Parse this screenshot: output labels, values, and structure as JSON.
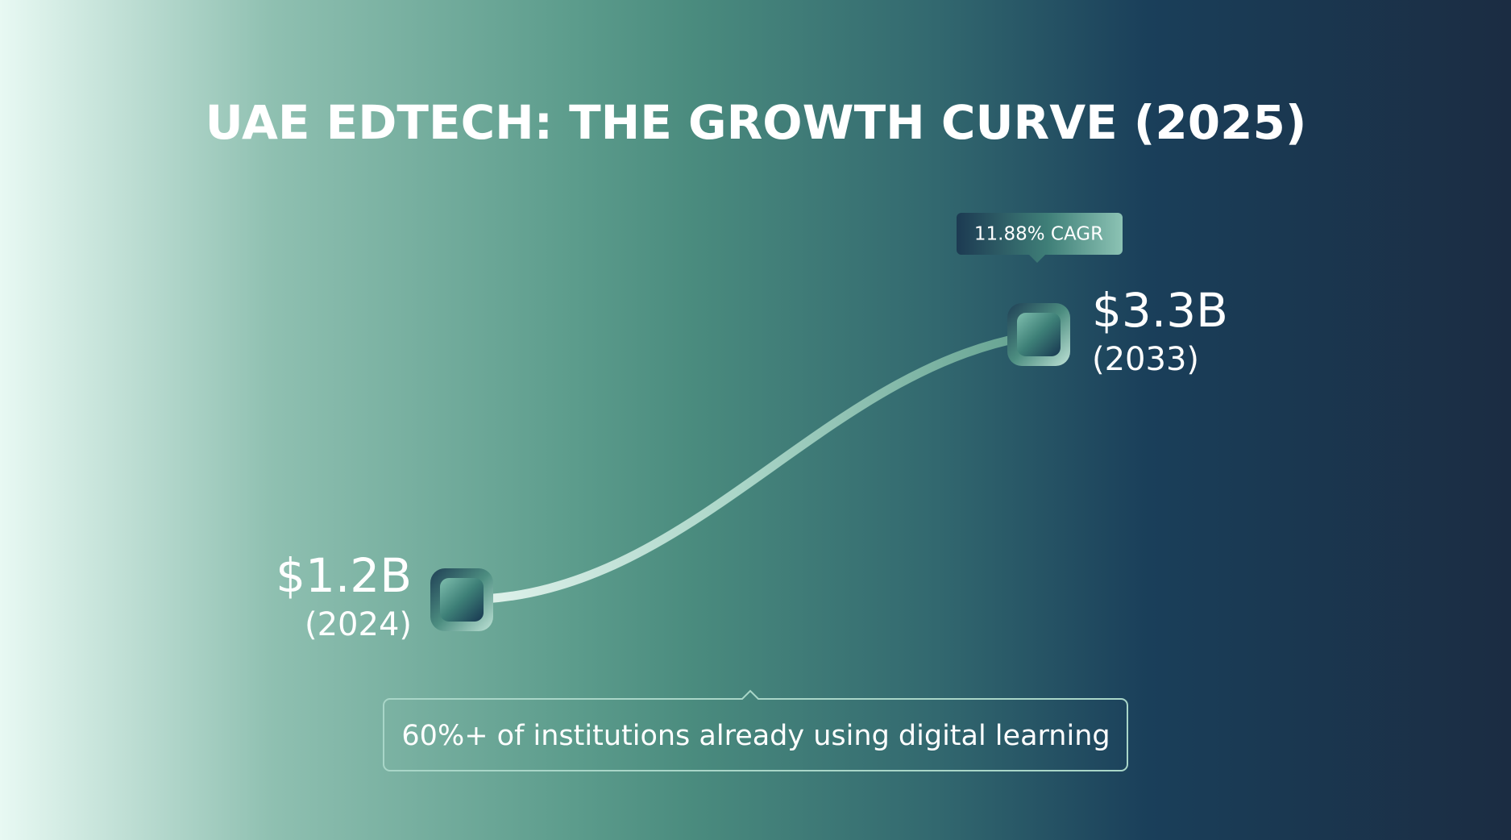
{
  "chart_data": {
    "type": "line",
    "title": "UAE EDTECH: THE GROWTH CURVE (2025)",
    "categories": [
      "(2024)",
      "(2033)"
    ],
    "values": [
      1.2,
      3.3
    ],
    "value_labels": [
      "$1.2B",
      "$3.3B"
    ],
    "annotations": [
      "11.88% CAGR",
      "60%+ of institutions already using digital learning"
    ]
  }
}
